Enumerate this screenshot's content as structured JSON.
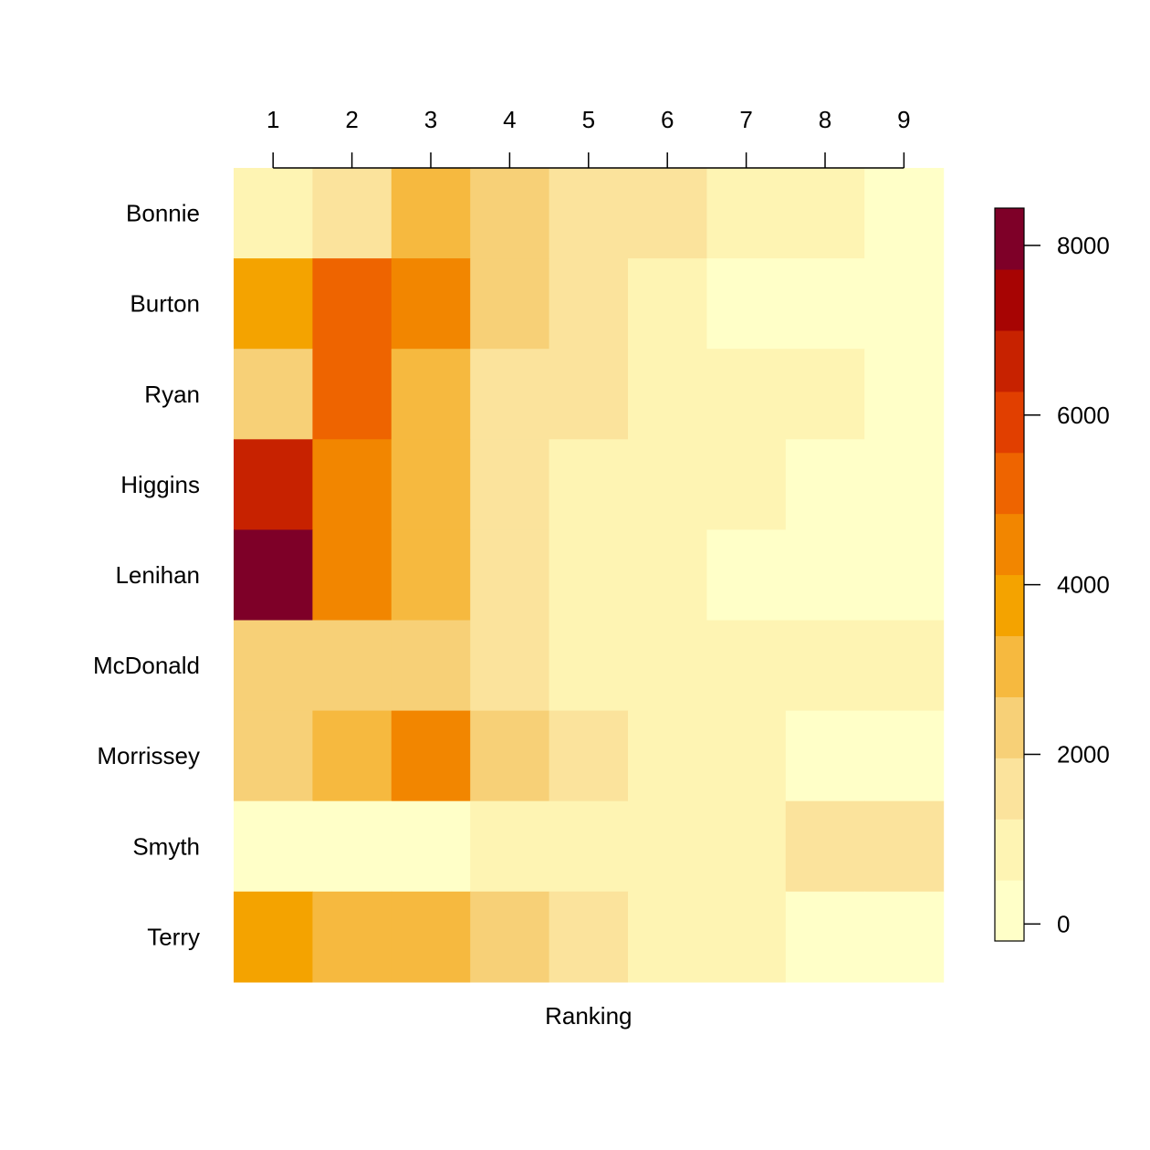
{
  "chart_data": {
    "type": "heatmap",
    "title": "",
    "xlabel": "Ranking",
    "ylabel": "",
    "x_categories": [
      "1",
      "2",
      "3",
      "4",
      "5",
      "6",
      "7",
      "8",
      "9"
    ],
    "y_categories": [
      "Bonnie",
      "Burton",
      "Ryan",
      "Higgins",
      "Lenihan",
      "McDonald",
      "Morrissey",
      "Smyth",
      "Terry"
    ],
    "values": [
      [
        900,
        1700,
        3200,
        2300,
        1700,
        1700,
        900,
        900,
        300
      ],
      [
        3800,
        5300,
        4800,
        2300,
        1700,
        900,
        300,
        300,
        300
      ],
      [
        2300,
        5300,
        3200,
        1700,
        1700,
        900,
        900,
        900,
        300
      ],
      [
        6700,
        4800,
        3200,
        1700,
        900,
        900,
        900,
        300,
        300
      ],
      [
        8200,
        4800,
        3200,
        1700,
        900,
        900,
        300,
        300,
        300
      ],
      [
        2300,
        2300,
        2300,
        1700,
        900,
        900,
        900,
        900,
        900
      ],
      [
        2300,
        3200,
        4800,
        2300,
        1700,
        900,
        900,
        300,
        300
      ],
      [
        300,
        300,
        300,
        900,
        900,
        900,
        900,
        1700,
        1700
      ],
      [
        3800,
        3200,
        3200,
        2300,
        1700,
        900,
        900,
        300,
        300
      ]
    ],
    "x_axis_position": "top",
    "grid": false,
    "colorbar": {
      "position": "right",
      "breaks": [
        -200,
        520,
        1240,
        1960,
        2680,
        3400,
        4120,
        4840,
        5560,
        6280,
        7000,
        7720,
        8440
      ],
      "colors": [
        "#FFFFC8",
        "#FEF4B3",
        "#FBE39C",
        "#F7D077",
        "#F6B93F",
        "#F4A300",
        "#F28600",
        "#EE6400",
        "#E13F00",
        "#C72200",
        "#A70403",
        "#7E0028"
      ],
      "ticks": [
        0,
        2000,
        4000,
        6000,
        8000
      ],
      "tick_labels": [
        "0",
        "2000",
        "4000",
        "6000",
        "8000"
      ]
    }
  }
}
